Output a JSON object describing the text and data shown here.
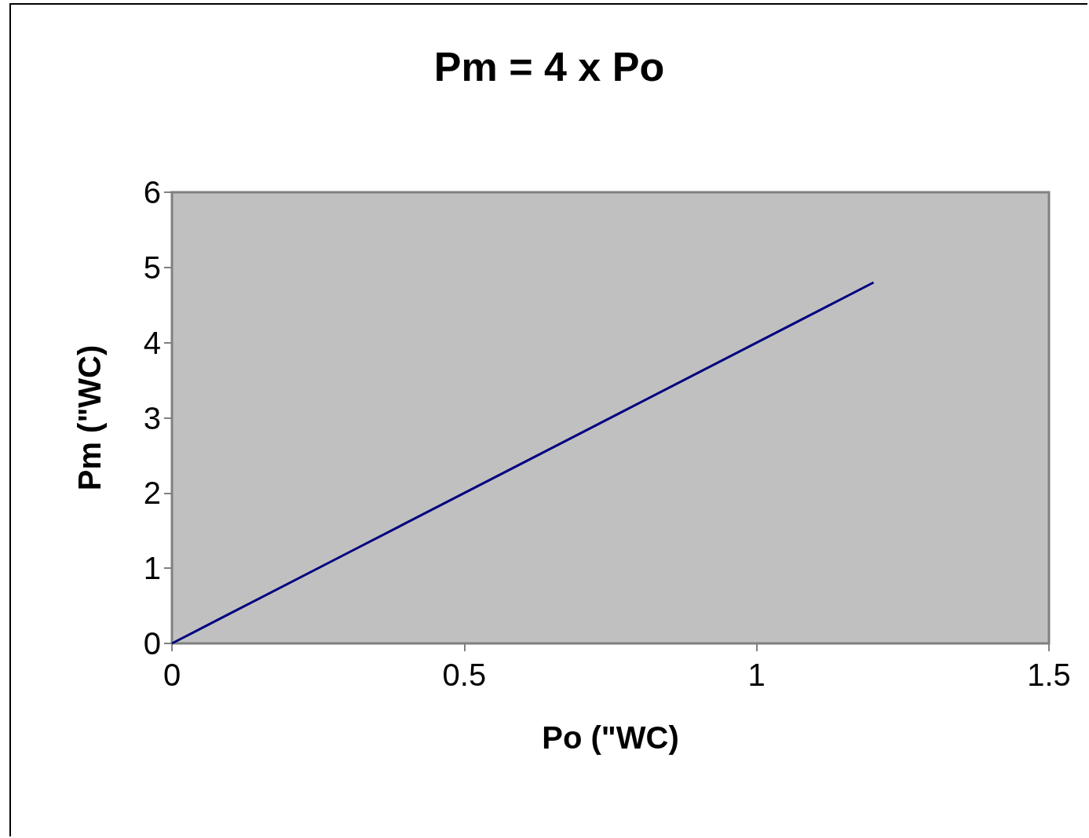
{
  "chart_data": {
    "type": "line",
    "title": "Pm = 4 x Po",
    "xlabel": "Po (\"WC)",
    "ylabel": "Pm (\"WC)",
    "series": [
      {
        "color": "#000080",
        "x": [
          0,
          0.1,
          0.3,
          0.4,
          1.1,
          1.2
        ],
        "values": [
          0,
          0.4,
          1.2,
          1.6,
          4.4,
          4.8
        ]
      }
    ],
    "xlim": [
      0,
      1.5
    ],
    "xticks": [
      0,
      0.5,
      1,
      1.5
    ],
    "ylim": [
      0,
      6
    ],
    "yticks": [
      0,
      1,
      2,
      3,
      4,
      5,
      6
    ],
    "grid": false,
    "marker": "none",
    "line_style": "solid"
  }
}
